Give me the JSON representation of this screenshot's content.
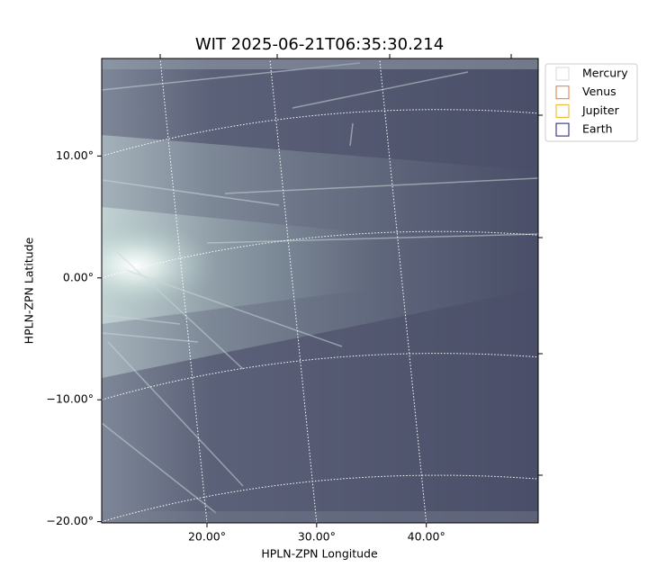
{
  "chart_data": {
    "type": "image",
    "title": "WIT 2025-06-21T06:35:30.214",
    "xlabel": "HPLN-ZPN Longitude",
    "ylabel": "HPLN-ZPN Latitude",
    "xlim": [
      10.4,
      50.2
    ],
    "ylim": [
      -20.1,
      18.0
    ],
    "xticks": [
      {
        "value": 20,
        "label": "20.00°"
      },
      {
        "value": 30,
        "label": "30.00°"
      },
      {
        "value": 40,
        "label": "40.00°"
      }
    ],
    "yticks": [
      {
        "value": -20,
        "label": "−20.00°"
      },
      {
        "value": -10,
        "label": "−10.00°"
      },
      {
        "value": 0,
        "label": "0.00°"
      },
      {
        "value": 10,
        "label": "10.00°"
      }
    ],
    "grid": true,
    "legend_loc": "upper right",
    "legend": [
      {
        "name": "Mercury",
        "color": "#d8d8d8"
      },
      {
        "name": "Venus",
        "color": "#e07b39"
      },
      {
        "name": "Jupiter",
        "color": "#e6b422"
      },
      {
        "name": "Earth",
        "color": "#1a1a7a"
      }
    ]
  }
}
